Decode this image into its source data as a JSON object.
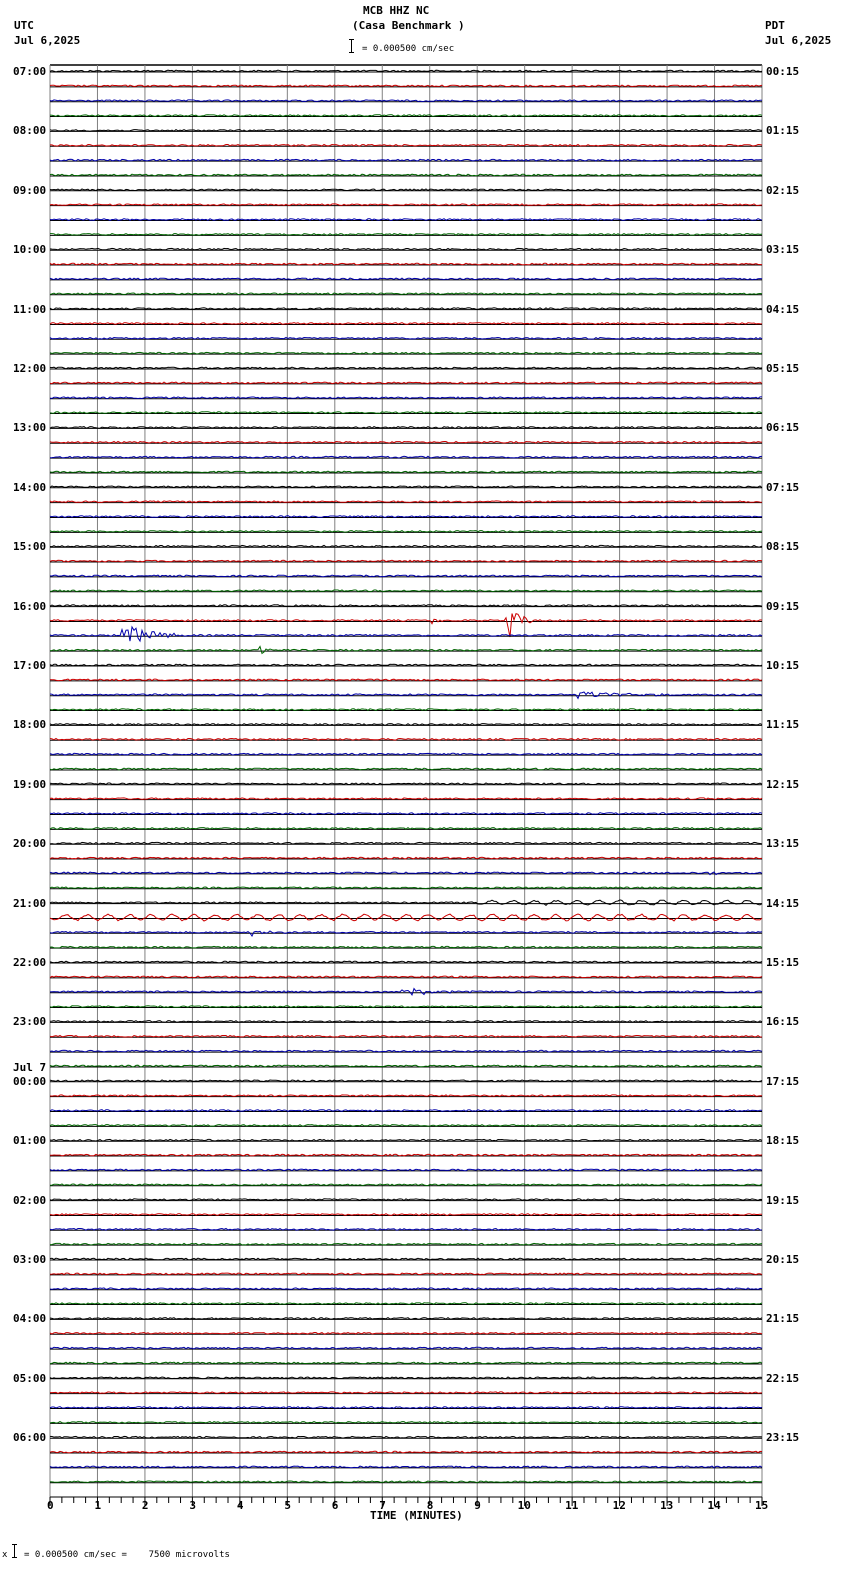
{
  "header": {
    "station": "MCB HHZ NC",
    "location": "(Casa Benchmark )",
    "scale_text": "= 0.000500 cm/sec",
    "left_tz": "UTC",
    "left_date": "Jul 6,2025",
    "right_tz": "PDT",
    "right_date": "Jul 6,2025"
  },
  "footer": {
    "scale_text": "= 0.000500 cm/sec =    7500 microvolts",
    "marker": "x"
  },
  "colors": {
    "trace_cycle": [
      "#000000",
      "#cc0000",
      "#0000aa",
      "#006600"
    ],
    "grid": "#808080",
    "baseline": "#000000"
  },
  "chart_data": {
    "type": "line",
    "title": "MCB HHZ NC (Casa Benchmark )",
    "xlabel": "TIME (MINUTES)",
    "ylabel": "",
    "xlim": [
      0,
      15
    ],
    "x_ticks": [
      "0",
      "1",
      "2",
      "3",
      "4",
      "5",
      "6",
      "7",
      "8",
      "9",
      "10",
      "11",
      "12",
      "13",
      "14",
      "15"
    ],
    "grid": true,
    "traces_per_hour": 4,
    "minutes_per_trace": 15,
    "left_labels": [
      "07:00",
      "08:00",
      "09:00",
      "10:00",
      "11:00",
      "12:00",
      "13:00",
      "14:00",
      "15:00",
      "16:00",
      "17:00",
      "18:00",
      "19:00",
      "20:00",
      "21:00",
      "22:00",
      "23:00",
      "00:00",
      "01:00",
      "02:00",
      "03:00",
      "04:00",
      "05:00",
      "06:00"
    ],
    "left_date_change": {
      "index": 17,
      "label": "Jul 7"
    },
    "right_labels": [
      "00:15",
      "01:15",
      "02:15",
      "03:15",
      "04:15",
      "05:15",
      "06:15",
      "07:15",
      "08:15",
      "09:15",
      "10:15",
      "11:15",
      "12:15",
      "13:15",
      "14:15",
      "15:15",
      "16:15",
      "17:15",
      "18:15",
      "19:15",
      "20:15",
      "21:15",
      "22:15",
      "23:15"
    ],
    "events": [
      {
        "hour_index": 9,
        "trace": 1,
        "x_start": 8.0,
        "x_end": 8.6,
        "amplitude": 0.3,
        "desc": "small red burst 16:15 UTC"
      },
      {
        "hour_index": 9,
        "trace": 1,
        "x_start": 9.6,
        "x_end": 10.2,
        "amplitude": 1.8,
        "desc": "large red event 16:15 UTC ~minute 10"
      },
      {
        "hour_index": 9,
        "trace": 2,
        "x_start": 1.45,
        "x_end": 3.0,
        "amplitude": 1.0,
        "desc": "blue event 16:30 UTC ~minute 1.5"
      },
      {
        "hour_index": 9,
        "trace": 3,
        "x_start": 4.4,
        "x_end": 4.9,
        "amplitude": 0.4,
        "desc": "green burst 16:45 UTC ~minute 4.5"
      },
      {
        "hour_index": 10,
        "trace": 2,
        "x_start": 11.0,
        "x_end": 13.5,
        "amplitude": 0.3,
        "desc": "blue burst 17:30 UTC ~minute 12"
      },
      {
        "hour_index": 13,
        "trace": 2,
        "x_start": 13.8,
        "x_end": 14.6,
        "amplitude": 0.2,
        "desc": "blue burst 20:30 UTC"
      },
      {
        "hour_index": 14,
        "trace": 1,
        "x_start": 0,
        "x_end": 15,
        "amplitude": 0.35,
        "oscillation": true,
        "desc": "red oscillation 21:15 UTC"
      },
      {
        "hour_index": 14,
        "trace": 0,
        "x_start": 9,
        "x_end": 15,
        "amplitude": 0.25,
        "oscillation": true,
        "desc": "black oscillation 21:00 UTC late"
      },
      {
        "hour_index": 14,
        "trace": 2,
        "x_start": 4.2,
        "x_end": 5.0,
        "amplitude": 0.3,
        "desc": "blue burst 21:30 UTC"
      },
      {
        "hour_index": 15,
        "trace": 2,
        "x_start": 7.3,
        "x_end": 9.0,
        "amplitude": 0.45,
        "desc": "blue event 22:30 UTC ~minute 8"
      }
    ]
  }
}
